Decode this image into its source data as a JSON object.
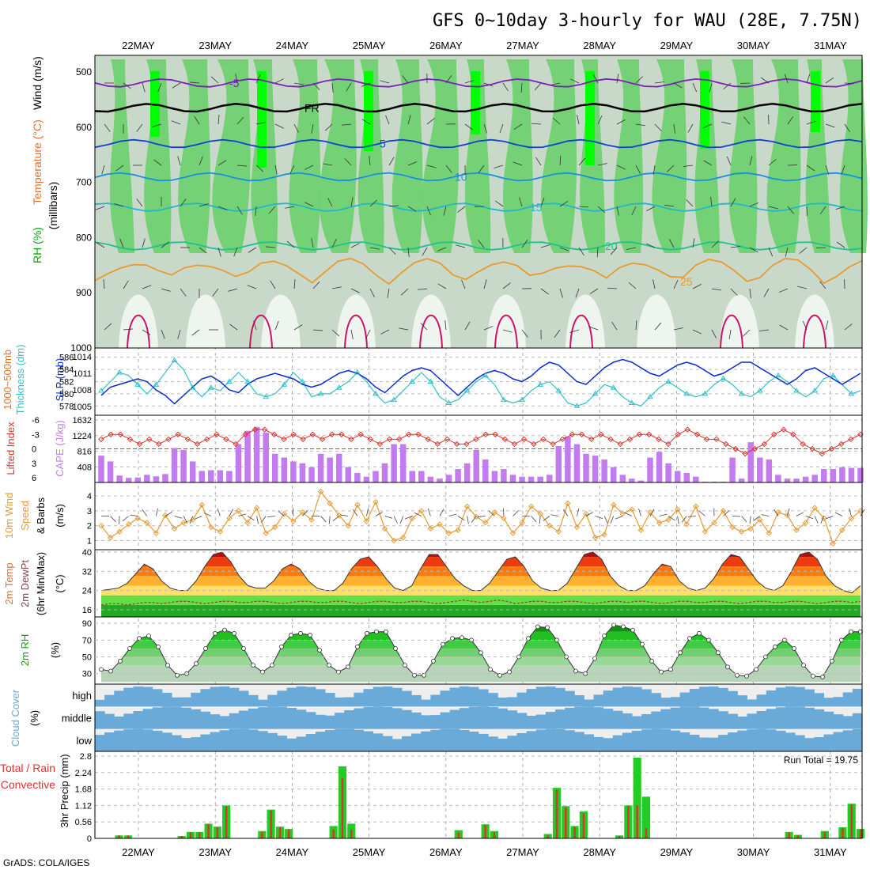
{
  "title": "GFS 0~10day 3-hourly for WAU (28E, 7.75N)",
  "credit": "GrADS: COLA/IGES",
  "dates": [
    "22MAY",
    "23MAY",
    "24MAY",
    "25MAY",
    "26MAY",
    "27MAY",
    "28MAY",
    "29MAY",
    "30MAY",
    "31MAY"
  ],
  "colors": {
    "rh_dark": "#00ff00",
    "rh_mid": "#6ccf6c",
    "rh_light": "#9ed89e",
    "rh_pale": "#c9d9c9",
    "rh_white": "#eef5ee",
    "slp": "#0a2ad0",
    "thickness": "#30c0c8",
    "cape": "#c27cf0",
    "lifted": "#e03030",
    "wind10m": "#e89a30",
    "rain": "#e03030",
    "total": "#22cc22",
    "cloud": "#6aaad8"
  },
  "panel_labels": {
    "upper": [
      "RH (%)",
      "Temperature (°C)",
      "Wind (m/s)",
      "(millibars)"
    ],
    "slp": [
      "Thickness (dm)",
      "1000~500mb",
      "SLP (mb)"
    ],
    "cape": [
      "Lifted Index",
      "CAPE (J/kg)"
    ],
    "wind10m": [
      "10m Wind",
      "Speed",
      "& Barbs",
      "(m/s)"
    ],
    "temp2m": [
      "2m Temp",
      "2m DewPt",
      "(6hr Min/Max)",
      "(°C)"
    ],
    "rh2m": [
      "2m RH",
      "(%)"
    ],
    "cloud": [
      "Cloud Cover",
      "(%)"
    ],
    "precip": [
      "Total / Rain",
      "Convective",
      "3hr Precip (mm)"
    ]
  },
  "run_total_label": "Run Total = 19.75",
  "chart_data": [
    {
      "type": "heatmap",
      "name": "upper-air",
      "ylabel": "(millibars)",
      "yticks": [
        500,
        600,
        700,
        800,
        900,
        1000
      ],
      "isotherms": [
        {
          "label": "-5",
          "level": 520
        },
        {
          "label": "FR",
          "level": 565
        },
        {
          "label": "5",
          "level": 630
        },
        {
          "label": "10",
          "level": 690
        },
        {
          "label": "15",
          "level": 745
        },
        {
          "label": "20",
          "level": 815
        },
        {
          "label": "25",
          "level": 880
        }
      ]
    },
    {
      "type": "line",
      "name": "thickness-slp",
      "thickness_ticks": [
        578,
        580,
        582,
        584,
        586
      ],
      "slp_ticks": [
        1005,
        1008,
        1011,
        1014
      ],
      "thickness": [
        580.5,
        582,
        583.5,
        583,
        581.5,
        580,
        581.5,
        583.5,
        585.5,
        584,
        581,
        579.5,
        581,
        580.5,
        582,
        583.5,
        582,
        580,
        579.5,
        580,
        581.5,
        583.5,
        582,
        579.5,
        580,
        580,
        581,
        582,
        583.5,
        582,
        580,
        578.5,
        579,
        580.5,
        582,
        583.5,
        582,
        579.5,
        578.5,
        579,
        580.5,
        582,
        583,
        581.5,
        579,
        578.5,
        579,
        580.5,
        581.5,
        582,
        580.5,
        578.5,
        578,
        578.5,
        580,
        581.5,
        581,
        579.5,
        578.5,
        578,
        579.5,
        581,
        582,
        581,
        580,
        579.5,
        580,
        581.5,
        582.5,
        581.5,
        580,
        579.5,
        580.5,
        582,
        583,
        582,
        580.5,
        579.5,
        580.5,
        582.5,
        583,
        581.5,
        580,
        580.5
      ],
      "slp": [
        1007,
        1008.5,
        1009,
        1009.5,
        1010,
        1009.5,
        1008,
        1007,
        1005.5,
        1007,
        1008.5,
        1010,
        1010.5,
        1009.5,
        1008,
        1007.5,
        1009,
        1010,
        1010.5,
        1011,
        1010.5,
        1010,
        1009,
        1008.5,
        1009,
        1010,
        1011,
        1011.5,
        1011,
        1010,
        1008.5,
        1007.5,
        1009,
        1010.5,
        1011.5,
        1012,
        1011.5,
        1010,
        1008.5,
        1007,
        1008.5,
        1010,
        1011,
        1011.5,
        1011,
        1010,
        1009.5,
        1010.5,
        1012,
        1013,
        1012.5,
        1011,
        1009.5,
        1009,
        1010.5,
        1012,
        1013,
        1013.5,
        1013,
        1012,
        1011,
        1010.5,
        1011.5,
        1012.5,
        1013,
        1012.5,
        1011.5,
        1010.5,
        1011,
        1012,
        1013,
        1013,
        1012,
        1011,
        1010,
        1009,
        1010,
        1011.5,
        1012,
        1011,
        1010,
        1009,
        1010,
        1011
      ]
    },
    {
      "type": "bar",
      "name": "cape-lifted-index",
      "cape_ticks": [
        408,
        816,
        1224,
        1632
      ],
      "li_ticks": [
        -6,
        -3,
        0,
        3,
        6
      ],
      "cape": [
        700,
        550,
        180,
        120,
        130,
        200,
        160,
        220,
        900,
        850,
        550,
        300,
        320,
        320,
        300,
        1000,
        1350,
        1450,
        1300,
        750,
        650,
        550,
        500,
        400,
        750,
        650,
        750,
        400,
        250,
        150,
        300,
        500,
        1000,
        1000,
        300,
        300,
        150,
        100,
        200,
        350,
        500,
        850,
        600,
        300,
        350,
        200,
        150,
        150,
        150,
        200,
        950,
        1200,
        1000,
        750,
        700,
        600,
        400,
        200,
        100,
        50,
        650,
        800,
        500,
        300,
        250,
        150,
        20,
        20,
        20,
        650,
        100,
        1050,
        650,
        600,
        200,
        100,
        100,
        150,
        200,
        350,
        350,
        400,
        380,
        380
      ],
      "lifted_index": [
        -2,
        -3,
        -3,
        -2,
        -1,
        -2,
        -1,
        -2,
        -3,
        -2,
        -1,
        -2,
        -3,
        -2,
        -1,
        -3,
        -4,
        -4,
        -3,
        -2,
        -3,
        -2,
        -3,
        -2,
        -3,
        -3,
        -2,
        -3,
        -2,
        -1,
        -2,
        -2,
        -3,
        -3,
        -2,
        -1,
        -2,
        -1,
        -1,
        -2,
        -3,
        -3,
        -2,
        -1,
        -2,
        -1,
        -2,
        -1,
        -2,
        -3,
        -3,
        -2,
        -3,
        -2,
        -1,
        -2,
        -3,
        -3,
        -2,
        -1,
        -3,
        -4,
        -3,
        -2,
        -2,
        -1,
        0,
        1,
        0,
        -1,
        -3,
        -4,
        -3,
        -1,
        0,
        1,
        0,
        -1,
        -2,
        -3
      ]
    },
    {
      "type": "line",
      "name": "10m-wind",
      "yticks": [
        1,
        2,
        3,
        4
      ],
      "speed": [
        2,
        1.2,
        1.6,
        2.1,
        2.5,
        2.2,
        1.5,
        2.7,
        1.8,
        2.2,
        2.4,
        3.4,
        1.9,
        1.6,
        2.5,
        3.0,
        2.2,
        3.2,
        1.5,
        1.9,
        2.8,
        2.3,
        2.9,
        2.4,
        4.3,
        3.5,
        2.7,
        2.0,
        3.4,
        2.3,
        3.6,
        1.8,
        1.0,
        1.2,
        2.5,
        3.0,
        1.8,
        2.1,
        1.5,
        1.7,
        3.3,
        2.6,
        2.2,
        2.9,
        2.5,
        1.5,
        2.2,
        3.3,
        2.8,
        2.0,
        1.6,
        3.5,
        1.9,
        2.8,
        1.2,
        1.4,
        3.4,
        2.8,
        3.1,
        1.7,
        2.9,
        2.2,
        2.4,
        3.1,
        2.1,
        3.3,
        1.6,
        2.2,
        3.0,
        1.9,
        1.6,
        1.8,
        2.4,
        1.5,
        2.9,
        2.7,
        1.7,
        2.2,
        3.2,
        2.5,
        0.8,
        1.7,
        2.5,
        3.0
      ]
    },
    {
      "type": "area",
      "name": "2m-temp",
      "yticks": [
        16,
        24,
        32,
        40
      ],
      "temp": [
        24,
        24.5,
        25,
        27,
        31,
        35,
        33,
        28,
        25,
        24,
        24,
        28,
        34,
        39,
        40,
        36,
        30,
        26,
        25,
        25,
        28,
        33,
        35,
        33,
        28,
        25,
        24,
        24,
        27,
        33,
        37,
        38,
        34,
        29,
        25,
        24,
        26,
        33,
        39,
        39,
        34,
        29,
        26,
        24,
        24,
        27,
        32,
        37,
        38,
        34,
        28,
        25,
        24,
        24,
        27,
        33,
        39,
        40,
        37,
        30,
        26,
        24,
        24,
        26,
        31,
        35,
        34,
        28,
        25,
        24,
        25,
        29,
        35,
        39,
        38,
        33,
        28,
        25,
        24,
        26,
        32,
        39,
        40,
        37,
        30,
        26,
        24,
        23,
        26
      ],
      "dewpt": [
        18,
        18.5,
        18.5,
        18,
        18.5,
        19,
        19,
        18.5,
        19,
        19.5,
        19.5,
        19,
        18.5,
        19,
        19.5,
        19.5,
        19,
        19,
        19.5,
        19.5,
        19,
        18.5,
        19,
        19.5,
        19.5,
        19,
        19,
        19.5,
        19.5,
        19,
        18.5,
        19,
        19.5,
        19.5,
        19,
        19,
        19.5,
        19.5,
        19,
        18.5,
        19,
        19.5,
        20,
        19.5,
        19,
        19.5,
        20,
        19.5,
        18.5,
        19,
        19.5,
        19.5,
        19,
        19,
        19.5,
        19.5,
        19,
        18.5,
        19,
        19.5,
        19.5,
        19,
        19.5,
        19.5,
        19,
        18.5,
        19,
        19.5,
        19.5,
        19,
        19,
        19.5,
        19.5,
        19,
        18.5,
        19,
        19.5,
        19.5,
        19,
        19,
        19.5,
        19.5,
        19,
        18.5,
        19,
        19.5,
        19.5,
        19,
        19.5
      ]
    },
    {
      "type": "area",
      "name": "2m-rh",
      "yticks": [
        30,
        50,
        70,
        90
      ],
      "rh": [
        35,
        33,
        45,
        60,
        72,
        75,
        62,
        40,
        28,
        30,
        42,
        60,
        78,
        82,
        78,
        60,
        40,
        32,
        40,
        62,
        76,
        78,
        76,
        58,
        40,
        32,
        38,
        62,
        78,
        80,
        80,
        60,
        40,
        28,
        28,
        45,
        65,
        72,
        73,
        70,
        55,
        35,
        28,
        32,
        50,
        72,
        86,
        85,
        70,
        50,
        33,
        30,
        48,
        75,
        88,
        86,
        82,
        65,
        45,
        32,
        35,
        55,
        72,
        78,
        70,
        55,
        38,
        28,
        27,
        35,
        50,
        62,
        70,
        60,
        40,
        27,
        26,
        45,
        70,
        80,
        80
      ]
    },
    {
      "type": "table",
      "name": "cloud-cover",
      "levels": [
        "high",
        "middle",
        "low"
      ]
    },
    {
      "type": "bar",
      "name": "3hr-precip",
      "ylabel": "3hr Precip (mm)",
      "yticks": [
        0,
        0.56,
        1.12,
        1.68,
        2.24,
        2.8
      ],
      "total": [
        0,
        0,
        0.1,
        0.1,
        0,
        0,
        0,
        0,
        0,
        0.08,
        0.22,
        0.22,
        0.5,
        0.4,
        1.12,
        0,
        0,
        0,
        0.25,
        0.98,
        0.4,
        0.32,
        0,
        0,
        0,
        0,
        0.42,
        2.45,
        0.5,
        0,
        0,
        0,
        0,
        0,
        0,
        0,
        0,
        0,
        0,
        0,
        0.28,
        0,
        0,
        0.48,
        0.25,
        0,
        0,
        0,
        0,
        0,
        0.15,
        1.72,
        1.1,
        0.42,
        0.92,
        0,
        0,
        0,
        0.1,
        1.12,
        2.75,
        1.42,
        0,
        0,
        0,
        0,
        0,
        0,
        0,
        0,
        0,
        0,
        0,
        0,
        0,
        0,
        0,
        0.22,
        0.12,
        0,
        0,
        0.25,
        0,
        0.38,
        1.18,
        0.32
      ],
      "rain": [
        0,
        0,
        0.1,
        0.1,
        0,
        0,
        0,
        0,
        0,
        0.08,
        0.2,
        0.2,
        0.48,
        0.38,
        1.1,
        0,
        0,
        0,
        0.2,
        0.95,
        0.38,
        0.3,
        0,
        0,
        0,
        0,
        0.3,
        2.05,
        0.3,
        0,
        0,
        0,
        0,
        0,
        0,
        0,
        0,
        0,
        0,
        0,
        0.2,
        0,
        0,
        0.45,
        0.2,
        0,
        0,
        0,
        0,
        0,
        0.1,
        1.65,
        1.05,
        0.4,
        0.85,
        0,
        0,
        0,
        0.08,
        1.1,
        1.12,
        0.35,
        0,
        0,
        0,
        0,
        0,
        0,
        0,
        0,
        0,
        0,
        0,
        0,
        0,
        0,
        0,
        0.2,
        0.1,
        0,
        0,
        0.2,
        0,
        0.35,
        1.15,
        0.3
      ]
    }
  ]
}
